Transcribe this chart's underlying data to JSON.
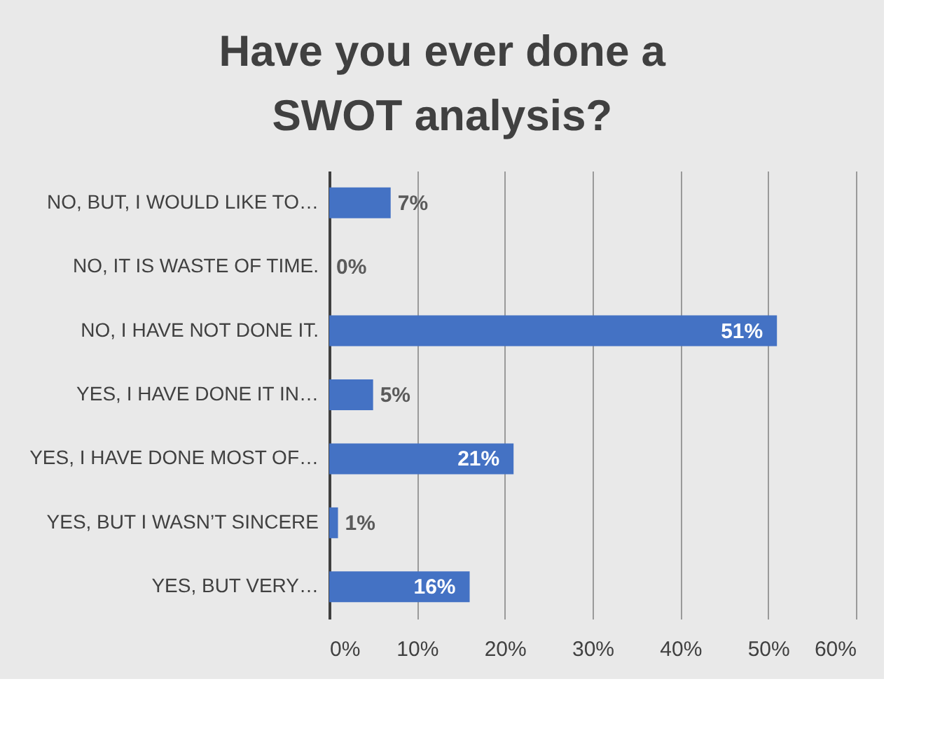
{
  "chart_data": {
    "type": "bar",
    "orientation": "horizontal",
    "title": "Have you ever done a SWOT analysis?",
    "categories": [
      "NO, BUT, I WOULD LIKE TO…",
      "NO, IT IS WASTE OF TIME.",
      "NO, I HAVE NOT DONE IT.",
      "YES, I HAVE DONE IT IN…",
      "YES, I HAVE DONE MOST OF…",
      "YES, BUT I WASN’T SINCERE",
      "YES, BUT VERY…"
    ],
    "values": [
      7,
      0,
      51,
      5,
      21,
      1,
      16
    ],
    "value_labels": [
      "7%",
      "0%",
      "51%",
      "5%",
      "21%",
      "1%",
      "16%"
    ],
    "color": "#4472c4",
    "xlim": [
      0,
      60
    ],
    "xticks": [
      {
        "value": 0,
        "label": "0%"
      },
      {
        "value": 10,
        "label": "10%"
      },
      {
        "value": 20,
        "label": "20%"
      },
      {
        "value": 30,
        "label": "30%"
      },
      {
        "value": 40,
        "label": "40%"
      },
      {
        "value": 50,
        "label": "50%"
      },
      {
        "value": 60,
        "label": "60%"
      }
    ],
    "grid": "x"
  }
}
